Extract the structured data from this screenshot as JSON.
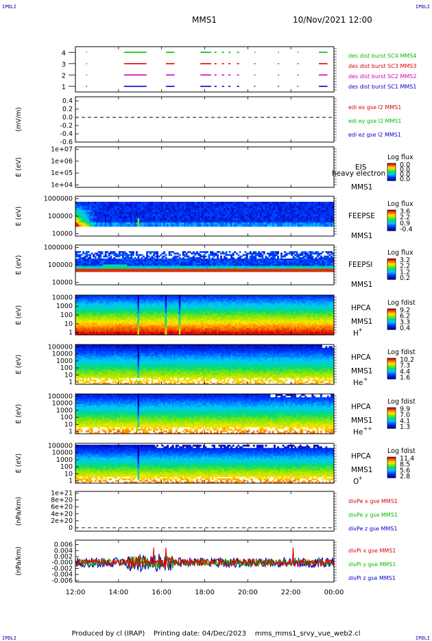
{
  "header": {
    "corner_label": "IPDLI",
    "spacecraft": "MMS1",
    "datetime": "10/Nov/2021 12:00"
  },
  "footer": {
    "produced_by": "Produced by cl (IRAP)",
    "printing_date": "Printing date: 04/Dec/2023",
    "script": "mms_mms1_srvy_vue_web2.cl"
  },
  "colors": {
    "blue": "#0000cc",
    "magenta": "#cc00cc",
    "red": "#dd0000",
    "green": "#00bb00"
  },
  "chart_data": [
    {
      "type": "line",
      "id": "burst",
      "ylabel": "",
      "yticks": [
        "1",
        "2",
        "3",
        "4"
      ],
      "ylim": [
        0.5,
        4.5
      ],
      "series": [
        {
          "name": "des dist burst SC1 MMS1",
          "color": "#0000cc",
          "level": 1
        },
        {
          "name": "des dist burst SC2 MMS2",
          "color": "#cc00cc",
          "level": 2
        },
        {
          "name": "des dist burst SC3 MMS3",
          "color": "#dd0000",
          "level": 3
        },
        {
          "name": "des dist burst SC4 MMS4",
          "color": "#00bb00",
          "level": 4
        }
      ],
      "intervals_h": [
        [
          12.5,
          12.52
        ],
        [
          14.25,
          15.3
        ],
        [
          16.2,
          16.6
        ],
        [
          17.8,
          18.3
        ],
        [
          18.45,
          18.55
        ],
        [
          18.8,
          18.9
        ],
        [
          19.1,
          19.2
        ],
        [
          19.5,
          19.6
        ],
        [
          20.3,
          20.35
        ],
        [
          21.4,
          21.45
        ],
        [
          22.3,
          22.35
        ],
        [
          23.3,
          23.7
        ]
      ]
    },
    {
      "type": "line",
      "id": "edi",
      "ylabel": "(mV/m)",
      "yticks": [
        "0.4",
        "0.2",
        "0.0",
        "-0.2",
        "-0.4",
        "-0.6"
      ],
      "ylim": [
        -0.6,
        0.5
      ],
      "series": [
        {
          "name": "edi ex gse l2 MMS1",
          "color": "#dd0000"
        },
        {
          "name": "edi ey gse l2 MMS1",
          "color": "#00bb00"
        },
        {
          "name": "edi ez gse l2 MMS1",
          "color": "#0000cc"
        }
      ]
    },
    {
      "type": "heatmap",
      "id": "eis",
      "ylabel": "E (eV)",
      "yticks": [
        "1e+07",
        "1e+06",
        "1e+05",
        "1e+04"
      ],
      "instrument": "EIS",
      "sc": "MMS1",
      "overlay": "heavy electron to",
      "cbar_title": "Log flux",
      "cbar_ticks": [
        "0.0",
        "0.0",
        "0.0",
        "0.0"
      ]
    },
    {
      "type": "heatmap",
      "id": "feepse",
      "ylabel": "E (eV)",
      "yticks": [
        "1000000",
        "100000",
        "10000"
      ],
      "instrument": "FEEPSE",
      "sc": "MMS1",
      "cbar_title": "Log flux",
      "cbar_ticks": [
        "3.6",
        "2.2",
        "0.9",
        "-0.4"
      ]
    },
    {
      "type": "heatmap",
      "id": "feepsi",
      "ylabel": "E (eV)",
      "yticks": [
        "1000000",
        "100000",
        "10000"
      ],
      "instrument": "FEEPSI",
      "sc": "MMS1",
      "cbar_title": "Log flux",
      "cbar_ticks": [
        "3.2",
        "2.2",
        "1.2",
        "0.2"
      ]
    },
    {
      "type": "heatmap",
      "id": "hpca_h",
      "ylabel": "E (eV)",
      "yticks": [
        "10000",
        "1000",
        "100",
        "10",
        "1"
      ],
      "instrument": "HPCA",
      "sc": "MMS1",
      "species": "H",
      "charge": "+",
      "cbar_title": "Log fdist",
      "cbar_ticks": [
        "9.2",
        "6.2",
        "3.3",
        "0.4"
      ]
    },
    {
      "type": "heatmap",
      "id": "hpca_he",
      "ylabel": "E (eV)",
      "yticks": [
        "100000",
        "10000",
        "1000",
        "100",
        "10",
        "1"
      ],
      "instrument": "HPCA",
      "sc": "MMS1",
      "species": "He",
      "charge": "+",
      "cbar_title": "Log fdist",
      "cbar_ticks": [
        "10.2",
        "7.3",
        "4.4",
        "1.6"
      ]
    },
    {
      "type": "heatmap",
      "id": "hpca_hepp",
      "ylabel": "E (eV)",
      "yticks": [
        "100000",
        "10000",
        "1000",
        "100",
        "10",
        "1"
      ],
      "instrument": "HPCA",
      "sc": "MMS1",
      "species": "He",
      "charge": "++",
      "cbar_title": "Log fdist",
      "cbar_ticks": [
        "9.9",
        "7.0",
        "4.1",
        "1.3"
      ]
    },
    {
      "type": "heatmap",
      "id": "hpca_o",
      "ylabel": "E (eV)",
      "yticks": [
        "100000",
        "10000",
        "1000",
        "100",
        "10",
        "1"
      ],
      "instrument": "HPCA",
      "sc": "MMS1",
      "species": "O",
      "charge": "+",
      "cbar_title": "Log fdist",
      "cbar_ticks": [
        "11.4",
        "8.5",
        "5.6",
        "2.8"
      ]
    },
    {
      "type": "line",
      "id": "divpe",
      "ylabel": "(nPa/km)",
      "yticks": [
        "1e+21",
        "8e+20",
        "6e+20",
        "4e+20",
        "2e+20",
        "0"
      ],
      "ylim": [
        -1e+20,
        1.05e+21
      ],
      "series": [
        {
          "name": "divPe x gse MMS1",
          "color": "#dd0000"
        },
        {
          "name": "divPe y gse MMS1",
          "color": "#00bb00"
        },
        {
          "name": "divPe z gse MMS1",
          "color": "#0000cc"
        }
      ]
    },
    {
      "type": "line",
      "id": "divpi",
      "ylabel": "(nPa/km)",
      "yticks": [
        "0.006",
        "0.004",
        "0.002",
        "-0.000",
        "-0.002",
        "-0.004",
        "-0.006"
      ],
      "ylim": [
        -0.0065,
        0.0075
      ],
      "series": [
        {
          "name": "divPi x gse MMS1",
          "color": "#dd0000"
        },
        {
          "name": "divPi y gse MMS1",
          "color": "#00bb00"
        },
        {
          "name": "divPi z gse MMS1",
          "color": "#0000cc"
        }
      ]
    }
  ],
  "time_axis": {
    "range_h": [
      12,
      24
    ],
    "ticks": [
      "12:00",
      "14:00",
      "16:00",
      "18:00",
      "20:00",
      "22:00",
      "00:00"
    ]
  }
}
